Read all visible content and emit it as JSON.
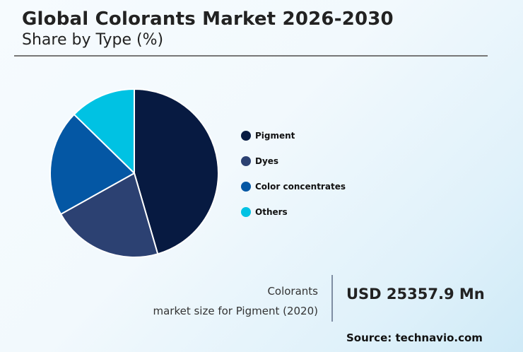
{
  "header": {
    "title": "Global Colorants Market 2026-2030",
    "subtitle": "Share by Type (%)"
  },
  "legend": {
    "items": [
      {
        "label": "Pigment",
        "color": "#071a41"
      },
      {
        "label": "Dyes",
        "color": "#2c4172"
      },
      {
        "label": "Color concentrates",
        "color": "#0457a4"
      },
      {
        "label": "Others",
        "color": "#00c2e3"
      }
    ]
  },
  "stat": {
    "line1": "Colorants",
    "line2": "market size for Pigment (2020)",
    "value": "USD 25357.9 Mn"
  },
  "footer": {
    "source": "Source: technavio.com"
  },
  "chart_data": {
    "type": "pie",
    "title": "Global Colorants Market 2026-2030",
    "subtitle": "Share by Type (%)",
    "categories": [
      "Pigment",
      "Dyes",
      "Color concentrates",
      "Others"
    ],
    "values": [
      45.5,
      21.4,
      20.4,
      12.7
    ],
    "colors": [
      "#071a41",
      "#2c4172",
      "#0457a4",
      "#00c2e3"
    ],
    "start_angle": "12 o'clock, clockwise",
    "legend_position": "right",
    "annotation": "Colorants market size for Pigment (2020): USD 25357.9 Mn"
  }
}
